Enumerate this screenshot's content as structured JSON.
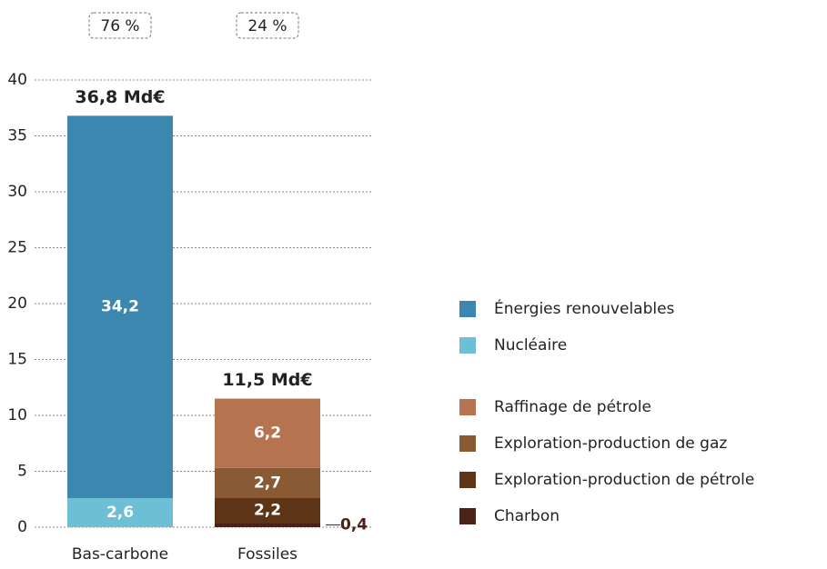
{
  "chart_data": {
    "type": "stacked_bar",
    "categories": [
      "Bas-carbone",
      "Fossiles"
    ],
    "series": [
      {
        "name": "Énergies renouvelables",
        "color": "#3b87b0",
        "values": [
          34.2,
          null
        ],
        "value_labels": [
          "34,2",
          null
        ]
      },
      {
        "name": "Nucléaire",
        "color": "#6cbfd5",
        "values": [
          2.6,
          null
        ],
        "value_labels": [
          "2,6",
          null
        ]
      },
      {
        "name": "Raffinage de pétrole",
        "color": "#b67350",
        "values": [
          null,
          6.2
        ],
        "value_labels": [
          null,
          "6,2"
        ]
      },
      {
        "name": "Exploration-production de gaz",
        "color": "#8a5a34",
        "values": [
          null,
          2.7
        ],
        "value_labels": [
          null,
          "2,7"
        ]
      },
      {
        "name": "Exploration-production de pétrole",
        "color": "#5e3416",
        "values": [
          null,
          2.2
        ],
        "value_labels": [
          null,
          "2,2"
        ]
      },
      {
        "name": "Charbon",
        "color": "#4a2217",
        "values": [
          null,
          0.4
        ],
        "value_labels": [
          null,
          "0,4"
        ]
      }
    ],
    "total_labels": [
      "36,8 Md€",
      "11,5 Md€"
    ],
    "share_labels": [
      "76 %",
      "24 %"
    ],
    "ylim": [
      0,
      40
    ],
    "yticks": [
      0,
      5,
      10,
      15,
      20,
      25,
      30,
      35,
      40
    ],
    "grid": true
  }
}
